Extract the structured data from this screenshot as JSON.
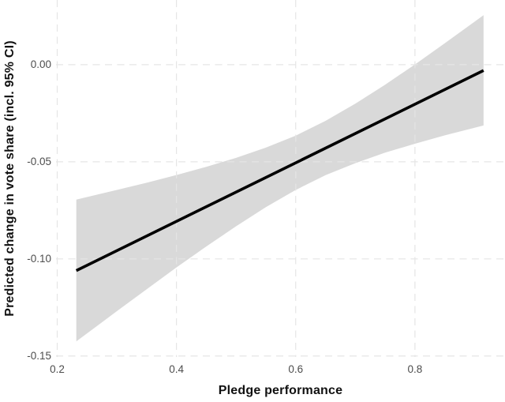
{
  "chart_data": {
    "type": "line",
    "title": "",
    "xlabel": "Pledge performance",
    "ylabel": "Predicted change in vote share (incl. 95% CI)",
    "xlim": [
      0.198,
      0.951
    ],
    "ylim": [
      -0.1505,
      0.0333
    ],
    "grid": "dashed, major ticks only",
    "legend": "none",
    "x_ticks": [
      {
        "value": 0.2,
        "label": "0.2"
      },
      {
        "value": 0.4,
        "label": "0.4"
      },
      {
        "value": 0.6,
        "label": "0.6"
      },
      {
        "value": 0.8,
        "label": "0.8"
      }
    ],
    "y_ticks": [
      {
        "value": 0.0,
        "label": "0.00"
      },
      {
        "value": -0.05,
        "label": "-0.05"
      },
      {
        "value": -0.1,
        "label": "-0.10"
      },
      {
        "value": -0.15,
        "label": "-0.15"
      }
    ],
    "series": [
      {
        "name": "fitted-line",
        "type": "line",
        "x": [
          0.232,
          0.915
        ],
        "y": [
          -0.106,
          -0.003
        ]
      },
      {
        "name": "ci-95-band",
        "type": "band",
        "x": [
          0.232,
          0.3,
          0.35,
          0.4,
          0.45,
          0.5,
          0.55,
          0.6,
          0.65,
          0.7,
          0.75,
          0.8,
          0.85,
          0.915
        ],
        "upper": [
          -0.0695,
          -0.0645,
          -0.0608,
          -0.0568,
          -0.0526,
          -0.048,
          -0.0427,
          -0.0365,
          -0.0289,
          -0.0201,
          -0.0103,
          0.0001,
          0.011,
          0.0255
        ],
        "lower": [
          -0.1425,
          -0.1269,
          -0.1156,
          -0.1044,
          -0.0936,
          -0.0832,
          -0.0733,
          -0.0645,
          -0.0569,
          -0.0507,
          -0.0453,
          -0.0407,
          -0.0364,
          -0.0313
        ]
      }
    ],
    "colors": {
      "line": "#000000",
      "band": "#d9d9d9",
      "grid": "#e5e5e5",
      "tick_text": "#4d4d4d",
      "axis_title_text": "#111111",
      "background": "#ffffff"
    }
  }
}
